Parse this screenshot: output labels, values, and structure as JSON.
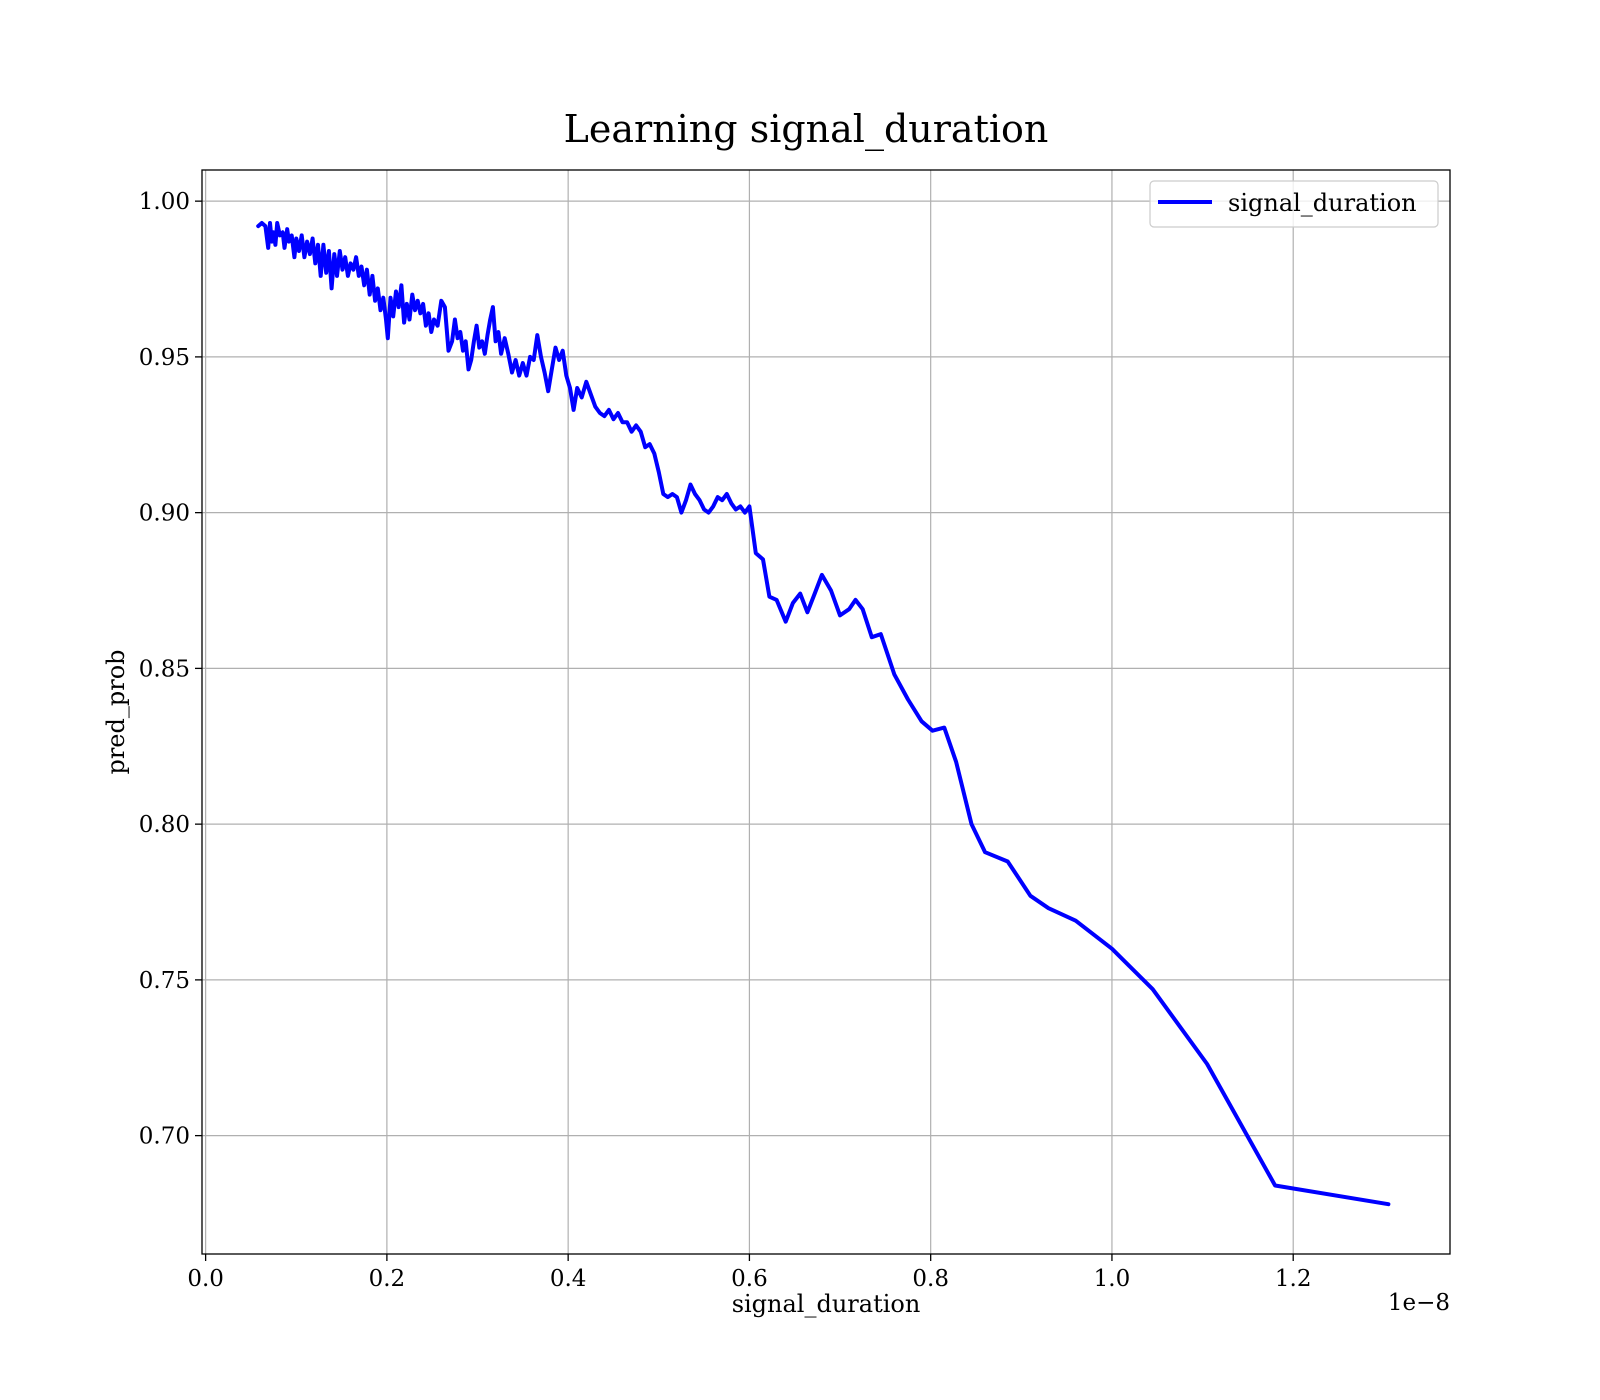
{
  "chart_data": {
    "type": "line",
    "title": "Learning signal_duration",
    "xlabel": "signal_duration",
    "ylabel": "pred_prob",
    "x_offset_label": "1e−8",
    "xlim": [
      -0.004,
      1.373
    ],
    "ylim": [
      0.662,
      1.01
    ],
    "x_ticks": [
      0.0,
      0.2,
      0.4,
      0.6,
      0.8,
      1.0,
      1.2
    ],
    "x_tick_labels": [
      "0.0",
      "0.2",
      "0.4",
      "0.6",
      "0.8",
      "1.0",
      "1.2"
    ],
    "y_ticks": [
      0.7,
      0.75,
      0.8,
      0.85,
      0.9,
      0.95,
      1.0
    ],
    "y_tick_labels": [
      "0.70",
      "0.75",
      "0.80",
      "0.85",
      "0.90",
      "0.95",
      "1.00"
    ],
    "grid": true,
    "legend_position": "top-right",
    "series": [
      {
        "name": "signal_duration",
        "color": "#0000ff",
        "x": [
          0.058,
          0.062,
          0.066,
          0.069,
          0.071,
          0.073,
          0.075,
          0.077,
          0.079,
          0.082,
          0.085,
          0.087,
          0.09,
          0.092,
          0.095,
          0.098,
          0.1,
          0.103,
          0.106,
          0.109,
          0.112,
          0.115,
          0.118,
          0.121,
          0.124,
          0.127,
          0.13,
          0.133,
          0.136,
          0.139,
          0.142,
          0.145,
          0.148,
          0.151,
          0.154,
          0.157,
          0.16,
          0.163,
          0.166,
          0.169,
          0.172,
          0.175,
          0.178,
          0.181,
          0.184,
          0.187,
          0.19,
          0.193,
          0.196,
          0.199,
          0.201,
          0.204,
          0.207,
          0.21,
          0.213,
          0.216,
          0.219,
          0.222,
          0.225,
          0.228,
          0.231,
          0.234,
          0.237,
          0.24,
          0.243,
          0.246,
          0.249,
          0.252,
          0.256,
          0.26,
          0.264,
          0.268,
          0.272,
          0.275,
          0.278,
          0.281,
          0.284,
          0.287,
          0.29,
          0.293,
          0.296,
          0.299,
          0.302,
          0.305,
          0.308,
          0.311,
          0.314,
          0.317,
          0.32,
          0.323,
          0.326,
          0.33,
          0.334,
          0.338,
          0.342,
          0.346,
          0.35,
          0.354,
          0.358,
          0.362,
          0.366,
          0.37,
          0.374,
          0.378,
          0.382,
          0.386,
          0.39,
          0.394,
          0.398,
          0.402,
          0.406,
          0.41,
          0.415,
          0.42,
          0.425,
          0.43,
          0.435,
          0.44,
          0.445,
          0.45,
          0.455,
          0.46,
          0.465,
          0.47,
          0.475,
          0.48,
          0.485,
          0.49,
          0.495,
          0.5,
          0.505,
          0.51,
          0.515,
          0.52,
          0.525,
          0.53,
          0.535,
          0.54,
          0.545,
          0.55,
          0.555,
          0.56,
          0.565,
          0.57,
          0.575,
          0.58,
          0.585,
          0.59,
          0.595,
          0.6,
          0.607,
          0.615,
          0.622,
          0.63,
          0.64,
          0.648,
          0.656,
          0.664,
          0.672,
          0.68,
          0.69,
          0.7,
          0.71,
          0.717,
          0.725,
          0.735,
          0.745,
          0.76,
          0.775,
          0.79,
          0.802,
          0.815,
          0.828,
          0.845,
          0.86,
          0.885,
          0.91,
          0.93,
          0.96,
          1.0,
          1.045,
          1.105,
          1.18,
          1.305
        ],
        "values": [
          0.992,
          0.993,
          0.992,
          0.985,
          0.993,
          0.987,
          0.99,
          0.986,
          0.993,
          0.989,
          0.99,
          0.985,
          0.991,
          0.987,
          0.989,
          0.982,
          0.988,
          0.984,
          0.989,
          0.982,
          0.987,
          0.983,
          0.988,
          0.98,
          0.986,
          0.976,
          0.986,
          0.977,
          0.984,
          0.972,
          0.983,
          0.976,
          0.984,
          0.978,
          0.982,
          0.976,
          0.98,
          0.978,
          0.982,
          0.976,
          0.979,
          0.973,
          0.978,
          0.97,
          0.976,
          0.968,
          0.972,
          0.965,
          0.969,
          0.962,
          0.956,
          0.969,
          0.963,
          0.971,
          0.966,
          0.973,
          0.961,
          0.967,
          0.962,
          0.97,
          0.965,
          0.968,
          0.964,
          0.967,
          0.96,
          0.964,
          0.958,
          0.962,
          0.96,
          0.968,
          0.966,
          0.952,
          0.955,
          0.962,
          0.956,
          0.958,
          0.952,
          0.955,
          0.946,
          0.949,
          0.955,
          0.96,
          0.953,
          0.955,
          0.951,
          0.957,
          0.962,
          0.966,
          0.955,
          0.958,
          0.951,
          0.956,
          0.951,
          0.945,
          0.949,
          0.944,
          0.948,
          0.944,
          0.95,
          0.949,
          0.957,
          0.95,
          0.945,
          0.939,
          0.946,
          0.953,
          0.949,
          0.952,
          0.944,
          0.94,
          0.933,
          0.94,
          0.937,
          0.942,
          0.938,
          0.934,
          0.932,
          0.931,
          0.933,
          0.93,
          0.932,
          0.929,
          0.929,
          0.926,
          0.928,
          0.926,
          0.921,
          0.922,
          0.919,
          0.913,
          0.906,
          0.905,
          0.906,
          0.905,
          0.9,
          0.904,
          0.909,
          0.906,
          0.904,
          0.901,
          0.9,
          0.902,
          0.905,
          0.904,
          0.906,
          0.903,
          0.901,
          0.902,
          0.9,
          0.902,
          0.887,
          0.885,
          0.873,
          0.872,
          0.865,
          0.871,
          0.874,
          0.868,
          0.874,
          0.88,
          0.875,
          0.867,
          0.869,
          0.872,
          0.869,
          0.86,
          0.861,
          0.848,
          0.84,
          0.833,
          0.83,
          0.831,
          0.82,
          0.8,
          0.791,
          0.788,
          0.777,
          0.773,
          0.769,
          0.76,
          0.747,
          0.723,
          0.684,
          0.678
        ]
      }
    ]
  }
}
